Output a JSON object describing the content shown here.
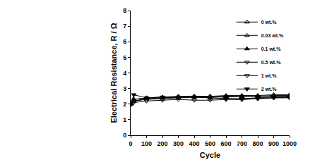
{
  "chart_data": {
    "type": "line",
    "x_label": "Cycle",
    "y_label": "Electrical Resistance, R / Ω",
    "x": [
      0,
      20,
      100,
      200,
      300,
      400,
      500,
      600,
      700,
      800,
      900,
      1000
    ],
    "xlim": [
      0,
      1000
    ],
    "xticks": [
      0,
      100,
      200,
      300,
      400,
      500,
      600,
      700,
      800,
      900,
      1000
    ],
    "ylim": [
      0,
      8
    ],
    "yticks": [
      0,
      1,
      2,
      3,
      4,
      5,
      6,
      7,
      8
    ],
    "grid": false,
    "legend": "upper right",
    "series": [
      {
        "name": "0 wt.%",
        "color": "#000000",
        "marker": "triangle-up-open",
        "line_style": "solid",
        "values": [
          2.0,
          2.3,
          2.4,
          2.45,
          2.5,
          2.5,
          2.5,
          2.55,
          2.55,
          2.55,
          2.6,
          2.6
        ]
      },
      {
        "name": "0.03 wt.%",
        "color": "#000000",
        "marker": "triangle-up-open",
        "line_style": "solid",
        "values": [
          2.0,
          2.2,
          2.35,
          2.4,
          2.45,
          2.45,
          2.5,
          2.5,
          2.5,
          2.5,
          2.55,
          2.55
        ]
      },
      {
        "name": "0.1 wt.%",
        "color": "#000000",
        "marker": "triangle-up",
        "line_style": "solid",
        "values": [
          2.0,
          2.3,
          2.4,
          2.4,
          2.45,
          2.5,
          2.45,
          2.45,
          2.5,
          2.5,
          2.5,
          2.5
        ]
      },
      {
        "name": "0.5 wt.%",
        "color": "#000000",
        "marker": "triangle-down-open",
        "line_style": "solid",
        "values": [
          1.95,
          2.1,
          2.2,
          2.25,
          2.3,
          2.25,
          2.25,
          2.3,
          2.3,
          2.35,
          2.4,
          2.45
        ]
      },
      {
        "name": "1 wt.%",
        "color": "#000000",
        "marker": "triangle-down-open",
        "line_style": "solid",
        "values": [
          2.0,
          2.2,
          2.3,
          2.35,
          2.4,
          2.45,
          2.4,
          2.35,
          2.35,
          2.4,
          2.45,
          2.45
        ]
      },
      {
        "name": "2 wt.%",
        "color": "#000000",
        "marker": "triangle-down",
        "line_style": "solid",
        "values": [
          2.0,
          2.6,
          2.4,
          2.45,
          2.45,
          2.45,
          2.4,
          2.35,
          2.3,
          2.35,
          2.4,
          2.4
        ]
      }
    ]
  }
}
